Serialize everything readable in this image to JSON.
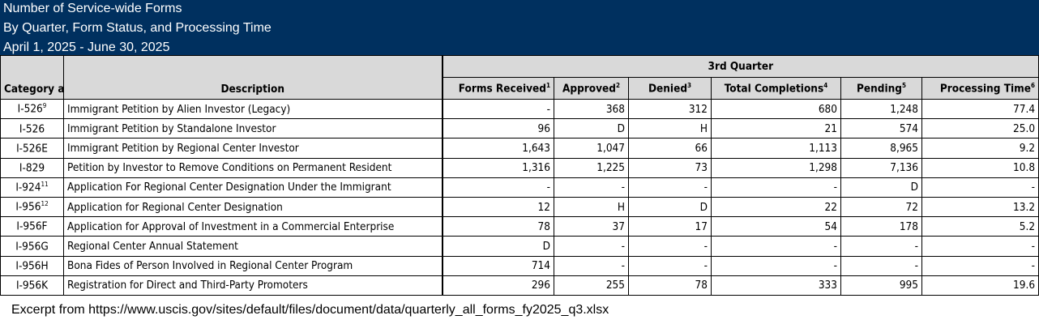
{
  "title_lines": [
    "Number of Service-wide Forms",
    "By Quarter, Form Status, and Processing Time",
    "April 1, 2025 - June 30, 2025"
  ],
  "headers": {
    "category": "Category a",
    "description": "Description",
    "quarter": "3rd Quarter",
    "columns": [
      {
        "label": "Forms Received",
        "sup": "1"
      },
      {
        "label": "Approved",
        "sup": "2"
      },
      {
        "label": "Denied",
        "sup": "3"
      },
      {
        "label": "Total Completions",
        "sup": "4"
      },
      {
        "label": "Pending",
        "sup": "5"
      },
      {
        "label": "Processing Time",
        "sup": "6"
      }
    ]
  },
  "rows": [
    {
      "cat": "I-526",
      "sup": "9",
      "desc": "Immigrant Petition by Alien Investor (Legacy)",
      "vals": [
        "-",
        "368",
        "312",
        "680",
        "1,248",
        "77.4"
      ]
    },
    {
      "cat": "I-526",
      "sup": "",
      "desc": "Immigrant Petition by Standalone Investor",
      "vals": [
        "96",
        "D",
        "H",
        "21",
        "574",
        "25.0"
      ]
    },
    {
      "cat": "I-526E",
      "sup": "",
      "desc": "Immigrant Petition by Regional Center Investor",
      "vals": [
        "1,643",
        "1,047",
        "66",
        "1,113",
        "8,965",
        "9.2"
      ]
    },
    {
      "cat": "I-829",
      "sup": "",
      "desc": "Petition by Investor to Remove Conditions on Permanent Resident",
      "vals": [
        "1,316",
        "1,225",
        "73",
        "1,298",
        "7,136",
        "10.8"
      ]
    },
    {
      "cat": "I-924",
      "sup": "11",
      "desc": "Application For Regional Center Designation Under the Immigrant",
      "vals": [
        "-",
        "-",
        "-",
        "-",
        "D",
        "-"
      ]
    },
    {
      "cat": "I-956",
      "sup": "12",
      "desc": "Application for Regional Center Designation",
      "vals": [
        "12",
        "H",
        "D",
        "22",
        "72",
        "13.2"
      ]
    },
    {
      "cat": "I-956F",
      "sup": "",
      "desc": "Application for Approval of Investment in a Commercial Enterprise",
      "vals": [
        "78",
        "37",
        "17",
        "54",
        "178",
        "5.2"
      ]
    },
    {
      "cat": "I-956G",
      "sup": "",
      "desc": "Regional Center Annual Statement",
      "vals": [
        "D",
        "-",
        "-",
        "-",
        "-",
        "-"
      ]
    },
    {
      "cat": "I-956H",
      "sup": "",
      "desc": "Bona Fides of Person Involved in Regional Center Program",
      "vals": [
        "714",
        "-",
        "-",
        "-",
        "-",
        "-"
      ]
    },
    {
      "cat": "I-956K",
      "sup": "",
      "desc": "Registration for Direct and Third-Party Promoters",
      "vals": [
        "296",
        "255",
        "78",
        "333",
        "995",
        "19.6"
      ]
    }
  ],
  "footer": "Excerpt from https://www.uscis.gov/sites/default/files/document/data/quarterly_all_forms_fy2025_q3.xlsx"
}
